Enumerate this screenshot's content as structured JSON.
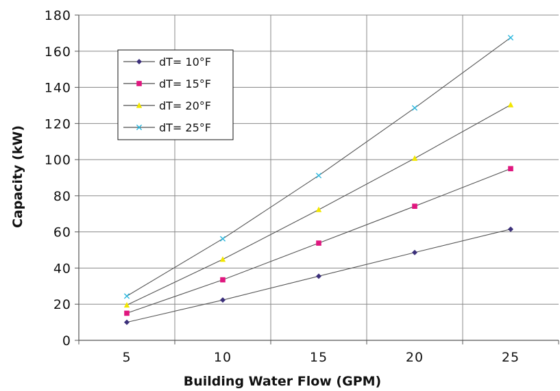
{
  "chart_data": {
    "type": "line",
    "title": "",
    "xlabel": "Building Water Flow (GPM)",
    "ylabel": "Capacity (kW)",
    "x": [
      5,
      10,
      15,
      20,
      25
    ],
    "x_categories": [
      "5",
      "10",
      "15",
      "20",
      "25"
    ],
    "xlim": [
      2.5,
      27.5
    ],
    "ylim": [
      0,
      180
    ],
    "yticks": [
      0,
      20,
      40,
      60,
      80,
      100,
      120,
      140,
      160,
      180
    ],
    "grid": true,
    "legend_position": "top-left",
    "series": [
      {
        "name": "dT= 10°F",
        "values": [
          10,
          22.3,
          35.5,
          48.6,
          61.5
        ],
        "color": "#3b2f7a",
        "marker": "diamond"
      },
      {
        "name": "dT= 15°F",
        "values": [
          15,
          33.5,
          53.8,
          74.2,
          95
        ],
        "color": "#e0177f",
        "marker": "square"
      },
      {
        "name": "dT= 20°F",
        "values": [
          19.5,
          44.8,
          72.3,
          100.7,
          130.3
        ],
        "color": "#f2e600",
        "marker": "triangle"
      },
      {
        "name": "dT= 25°F",
        "values": [
          24.5,
          56.2,
          91.2,
          128.6,
          167.5
        ],
        "color": "#27b6de",
        "marker": "x"
      }
    ],
    "line_color": "#555555"
  }
}
